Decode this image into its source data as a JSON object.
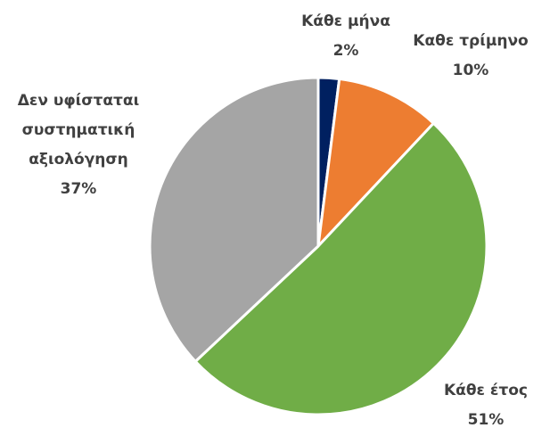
{
  "chart_data": {
    "type": "pie",
    "categories": [
      "Κάθε μήνα",
      "Καθε τρίμηνο",
      "Κάθε έτος",
      "Δεν υφίσταται συστηματική αξιολόγηση"
    ],
    "values": [
      2,
      10,
      51,
      37
    ],
    "value_labels": [
      "2%",
      "10%",
      "51%",
      "37%"
    ],
    "colors": [
      "#002060",
      "#ed7d31",
      "#70ad47",
      "#a5a5a5"
    ]
  }
}
